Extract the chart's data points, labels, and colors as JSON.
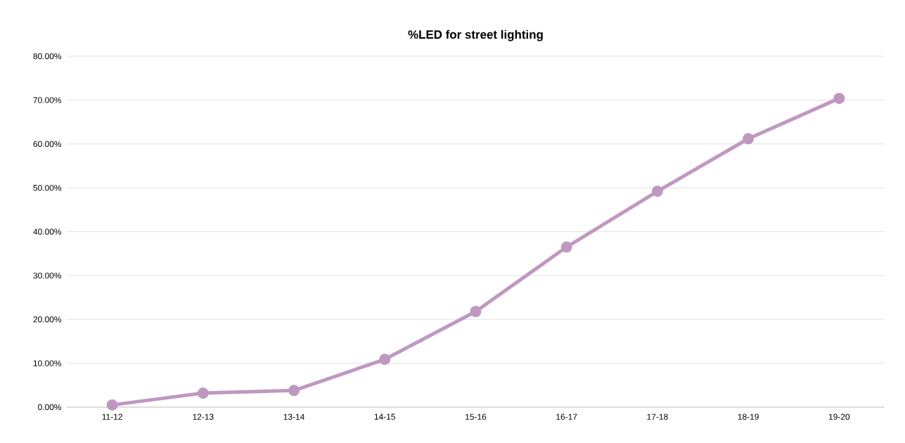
{
  "chart_data": {
    "type": "line",
    "title": "%LED for street lighting",
    "categories": [
      "11-12",
      "12-13",
      "13-14",
      "14-15",
      "15-16",
      "16-17",
      "17-18",
      "18-19",
      "19-20"
    ],
    "values": [
      0.5,
      3.2,
      3.8,
      10.9,
      21.8,
      36.5,
      49.2,
      61.2,
      70.4
    ],
    "color": "#bf98c0",
    "marker": "circle",
    "line_style": "solid",
    "grid": "y",
    "ylim": [
      0,
      80
    ],
    "yticks": [
      {
        "value": 0,
        "label": "0.00%"
      },
      {
        "value": 10,
        "label": "10.00%"
      },
      {
        "value": 20,
        "label": "20.00%"
      },
      {
        "value": 30,
        "label": "30.00%"
      },
      {
        "value": 40,
        "label": "40.00%"
      },
      {
        "value": 50,
        "label": "50.00%"
      },
      {
        "value": 60,
        "label": "60.00%"
      },
      {
        "value": 70,
        "label": "70.00%"
      },
      {
        "value": 80,
        "label": "80.00%"
      }
    ]
  }
}
